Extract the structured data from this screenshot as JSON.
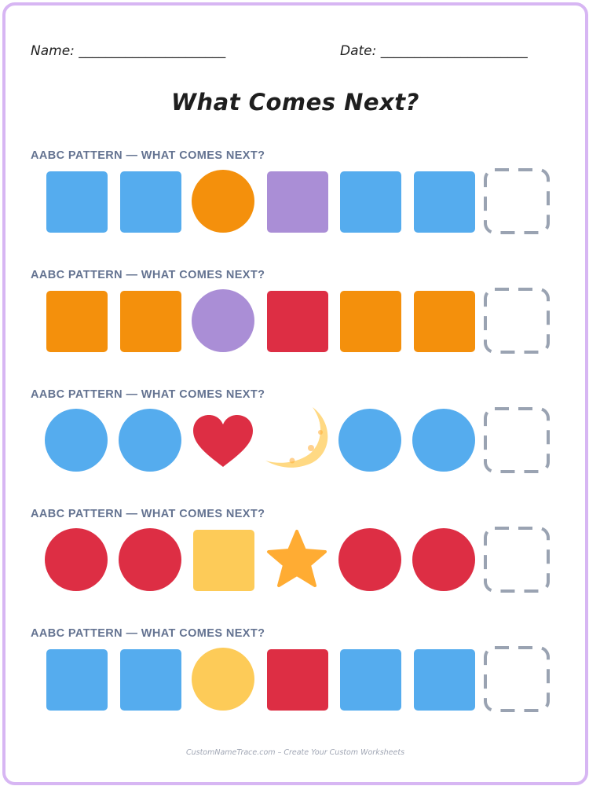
{
  "header": {
    "name_label": "Name: ______________________",
    "date_label": "Date: ______________________"
  },
  "title": "What Comes Next?",
  "colors": {
    "blue": "#55acee",
    "orange": "#f4900c",
    "purple": "#aa8ed6",
    "red": "#dd2e44",
    "yellow": "#fdcb58",
    "moon": "#ffd983",
    "moon_spot": "#ffac33",
    "star": "#ffac33",
    "dashed": "#9aa3b2"
  },
  "patterns": [
    {
      "label": "AABC PATTERN — WHAT COMES NEXT?",
      "items": [
        {
          "shape": "square",
          "color": "blue"
        },
        {
          "shape": "square",
          "color": "blue"
        },
        {
          "shape": "circle",
          "color": "orange"
        },
        {
          "shape": "square",
          "color": "purple"
        },
        {
          "shape": "square",
          "color": "blue"
        },
        {
          "shape": "square",
          "color": "blue"
        },
        {
          "shape": "blank",
          "color": "dashed"
        }
      ]
    },
    {
      "label": "AABC PATTERN — WHAT COMES NEXT?",
      "items": [
        {
          "shape": "square",
          "color": "orange"
        },
        {
          "shape": "square",
          "color": "orange"
        },
        {
          "shape": "circle",
          "color": "purple"
        },
        {
          "shape": "square",
          "color": "red"
        },
        {
          "shape": "square",
          "color": "orange"
        },
        {
          "shape": "square",
          "color": "orange"
        },
        {
          "shape": "blank",
          "color": "dashed"
        }
      ]
    },
    {
      "label": "AABC PATTERN — WHAT COMES NEXT?",
      "items": [
        {
          "shape": "circle",
          "color": "blue"
        },
        {
          "shape": "circle",
          "color": "blue"
        },
        {
          "shape": "heart",
          "color": "red"
        },
        {
          "shape": "moon",
          "color": "moon"
        },
        {
          "shape": "circle",
          "color": "blue"
        },
        {
          "shape": "circle",
          "color": "blue"
        },
        {
          "shape": "blank",
          "color": "dashed"
        }
      ]
    },
    {
      "label": "AABC PATTERN — WHAT COMES NEXT?",
      "items": [
        {
          "shape": "circle",
          "color": "red"
        },
        {
          "shape": "circle",
          "color": "red"
        },
        {
          "shape": "square",
          "color": "yellow"
        },
        {
          "shape": "star",
          "color": "star"
        },
        {
          "shape": "circle",
          "color": "red"
        },
        {
          "shape": "circle",
          "color": "red"
        },
        {
          "shape": "blank",
          "color": "dashed"
        }
      ]
    },
    {
      "label": "AABC PATTERN — WHAT COMES NEXT?",
      "items": [
        {
          "shape": "square",
          "color": "blue"
        },
        {
          "shape": "square",
          "color": "blue"
        },
        {
          "shape": "circle",
          "color": "yellow"
        },
        {
          "shape": "square",
          "color": "red"
        },
        {
          "shape": "square",
          "color": "blue"
        },
        {
          "shape": "square",
          "color": "blue"
        },
        {
          "shape": "blank",
          "color": "dashed"
        }
      ]
    }
  ],
  "footer": "CustomNameTrace.com – Create Your Custom Worksheets"
}
